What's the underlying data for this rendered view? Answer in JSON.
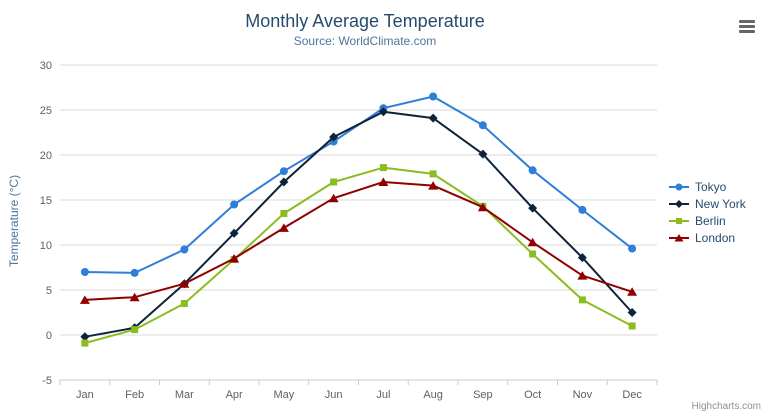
{
  "chart_data": {
    "type": "line",
    "title": "Monthly Average Temperature",
    "subtitle": "Source: WorldClimate.com",
    "xlabel": "",
    "ylabel": "Temperature (°C)",
    "categories": [
      "Jan",
      "Feb",
      "Mar",
      "Apr",
      "May",
      "Jun",
      "Jul",
      "Aug",
      "Sep",
      "Oct",
      "Nov",
      "Dec"
    ],
    "ylim": [
      -5,
      30
    ],
    "ytick_step": 5,
    "grid": true,
    "legend_position": "right",
    "series": [
      {
        "name": "Tokyo",
        "color": "#2f7ed8",
        "marker": "circle",
        "values": [
          7.0,
          6.9,
          9.5,
          14.5,
          18.2,
          21.5,
          25.2,
          26.5,
          23.3,
          18.3,
          13.9,
          9.6
        ]
      },
      {
        "name": "New York",
        "color": "#0d233a",
        "marker": "diamond",
        "values": [
          -0.2,
          0.8,
          5.7,
          11.3,
          17.0,
          22.0,
          24.8,
          24.1,
          20.1,
          14.1,
          8.6,
          2.5
        ]
      },
      {
        "name": "Berlin",
        "color": "#8bbc21",
        "marker": "square",
        "values": [
          -0.9,
          0.6,
          3.5,
          8.4,
          13.5,
          17.0,
          18.6,
          17.9,
          14.3,
          9.0,
          3.9,
          1.0
        ]
      },
      {
        "name": "London",
        "color": "#910000",
        "marker": "triangle",
        "values": [
          3.9,
          4.2,
          5.7,
          8.5,
          11.9,
          15.2,
          17.0,
          16.6,
          14.2,
          10.3,
          6.6,
          4.8
        ]
      }
    ]
  },
  "credits_label": "Highcharts.com"
}
